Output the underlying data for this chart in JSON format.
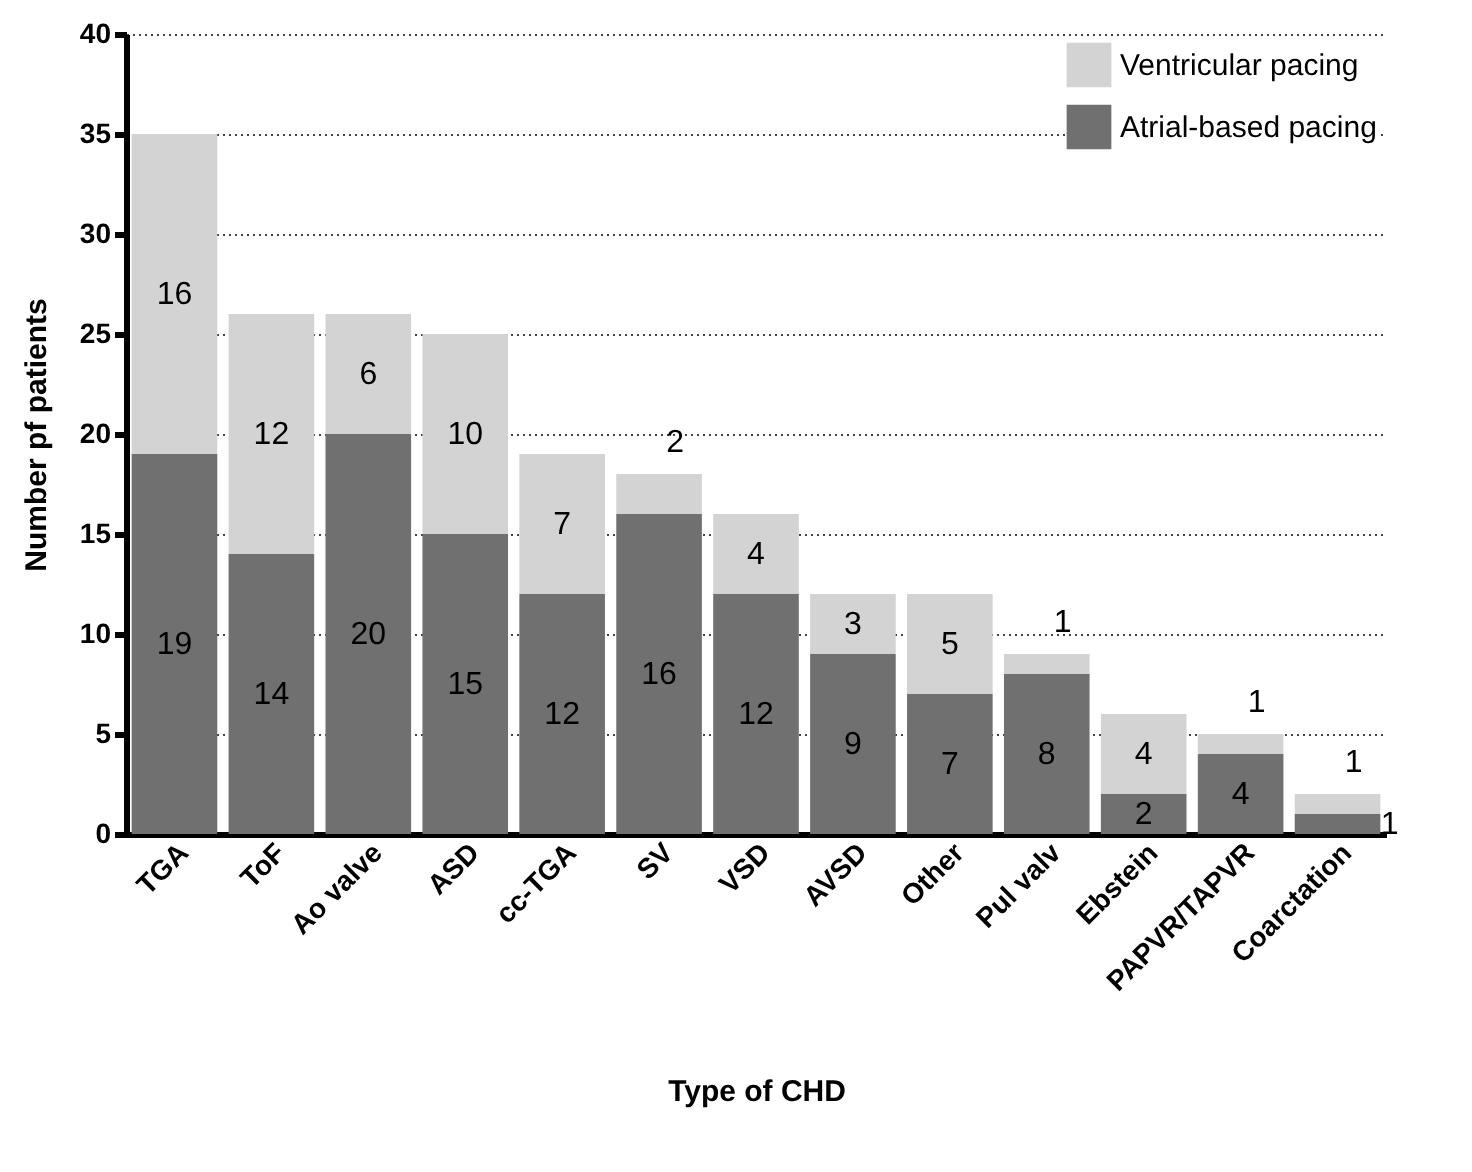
{
  "chart_data": {
    "type": "bar",
    "stacked": true,
    "xlabel": "Type of CHD",
    "ylabel": "Number pf patients",
    "categories": [
      "TGA",
      "ToF",
      "Ao valve",
      "ASD",
      "cc-TGA",
      "SV",
      "VSD",
      "AVSD",
      "Other",
      "Pul valv",
      "Ebstein",
      "PAPVR/TAPVR",
      "Coarctation"
    ],
    "series": [
      {
        "name": "Atrial-based pacing",
        "color": "#707070",
        "values": [
          19,
          14,
          20,
          15,
          12,
          16,
          12,
          9,
          7,
          8,
          2,
          4,
          1
        ]
      },
      {
        "name": "Ventricular pacing",
        "color": "#d3d3d3",
        "values": [
          16,
          12,
          6,
          10,
          7,
          2,
          4,
          3,
          5,
          1,
          4,
          1,
          1
        ]
      }
    ],
    "ylim": [
      0,
      40
    ],
    "yticks": [
      0,
      5,
      10,
      15,
      20,
      25,
      30,
      35,
      40
    ],
    "grid": "y",
    "legend": "top right",
    "data_labels": true
  }
}
